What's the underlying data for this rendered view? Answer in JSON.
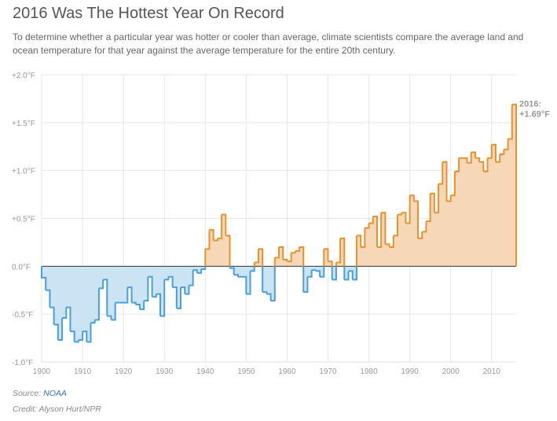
{
  "header": {
    "title": "2016 Was The Hottest Year On Record",
    "subtitle": "To determine whether a particular year was hotter or cooler than average, climate scientists compare the average land and ocean temperature for that year against the average temperature for the entire 20th century."
  },
  "footer": {
    "source_prefix": "Source: ",
    "source_link": "NOAA",
    "credit": "Credit: Alyson Hurt/NPR"
  },
  "colors": {
    "warm_line": "#e8922e",
    "warm_fill": "#f6d8b8",
    "cool_line": "#4a9fd8",
    "cool_fill": "#cbe4f4",
    "grid": "#e6e6e6",
    "zero_line": "#333333"
  },
  "chart_data": {
    "type": "area",
    "style": "step",
    "xlim": [
      1900,
      2016
    ],
    "ylim": [
      -1.0,
      2.0
    ],
    "x_ticks": [
      "1900",
      "1910",
      "1920",
      "1930",
      "1940",
      "1950",
      "1960",
      "1970",
      "1980",
      "1990",
      "2000",
      "2010"
    ],
    "y_ticks": [
      {
        "value": 2.0,
        "label": "+2.0°F"
      },
      {
        "value": 1.5,
        "label": "+1.5°F"
      },
      {
        "value": 1.0,
        "label": "+1.0°F"
      },
      {
        "value": 0.5,
        "label": "+0.5°F"
      },
      {
        "value": 0.0,
        "label": "0.0°F"
      },
      {
        "value": -0.5,
        "label": "-0.5°F"
      },
      {
        "value": -1.0,
        "label": "-1.0°F"
      }
    ],
    "grid": true,
    "annotation": {
      "year": 2016,
      "line1": "2016:",
      "line2": "+1.69°F"
    },
    "series": [
      {
        "x": [
          1900,
          1901,
          1902,
          1903,
          1904,
          1905,
          1906,
          1907,
          1908,
          1909,
          1910,
          1911,
          1912,
          1913,
          1914,
          1915,
          1916,
          1917,
          1918,
          1919,
          1920,
          1921,
          1922,
          1923,
          1924,
          1925,
          1926,
          1927,
          1928,
          1929,
          1930,
          1931,
          1932,
          1933,
          1934,
          1935,
          1936,
          1937,
          1938,
          1939,
          1940,
          1941,
          1942,
          1943,
          1944,
          1945,
          1946,
          1947,
          1948,
          1949,
          1950,
          1951,
          1952,
          1953,
          1954,
          1955,
          1956,
          1957,
          1958,
          1959,
          1960,
          1961,
          1962,
          1963,
          1964,
          1965,
          1966,
          1967,
          1968,
          1969,
          1970,
          1971,
          1972,
          1973,
          1974,
          1975,
          1976,
          1977,
          1978,
          1979,
          1980,
          1981,
          1982,
          1983,
          1984,
          1985,
          1986,
          1987,
          1988,
          1989,
          1990,
          1991,
          1992,
          1993,
          1994,
          1995,
          1996,
          1997,
          1998,
          1999,
          2000,
          2001,
          2002,
          2003,
          2004,
          2005,
          2006,
          2007,
          2008,
          2009,
          2010,
          2011,
          2012,
          2013,
          2014,
          2015
        ],
        "y": [
          -0.12,
          -0.25,
          -0.43,
          -0.61,
          -0.77,
          -0.54,
          -0.43,
          -0.68,
          -0.79,
          -0.77,
          -0.68,
          -0.79,
          -0.59,
          -0.56,
          -0.23,
          -0.14,
          -0.52,
          -0.56,
          -0.38,
          -0.38,
          -0.38,
          -0.22,
          -0.38,
          -0.4,
          -0.45,
          -0.36,
          -0.11,
          -0.32,
          -0.29,
          -0.52,
          -0.14,
          -0.11,
          -0.22,
          -0.44,
          -0.22,
          -0.29,
          -0.2,
          -0.04,
          -0.07,
          -0.03,
          0.18,
          0.38,
          0.27,
          0.29,
          0.54,
          0.32,
          -0.02,
          -0.09,
          -0.11,
          -0.11,
          -0.29,
          -0.05,
          0.04,
          0.18,
          -0.27,
          -0.29,
          -0.36,
          0.09,
          0.2,
          0.07,
          0.05,
          0.14,
          0.16,
          0.2,
          -0.27,
          -0.11,
          -0.04,
          -0.05,
          -0.11,
          0.18,
          0.05,
          -0.14,
          0.04,
          0.29,
          -0.14,
          -0.05,
          -0.14,
          0.32,
          0.2,
          0.4,
          0.45,
          0.52,
          0.2,
          0.56,
          0.23,
          0.2,
          0.32,
          0.54,
          0.56,
          0.45,
          0.74,
          0.68,
          0.29,
          0.36,
          0.47,
          0.76,
          0.56,
          0.86,
          1.09,
          0.68,
          0.74,
          0.99,
          1.13,
          1.13,
          1.08,
          1.19,
          1.13,
          1.09,
          0.99,
          1.13,
          1.27,
          1.09,
          1.17,
          1.22,
          1.33,
          1.69
        ]
      }
    ]
  }
}
